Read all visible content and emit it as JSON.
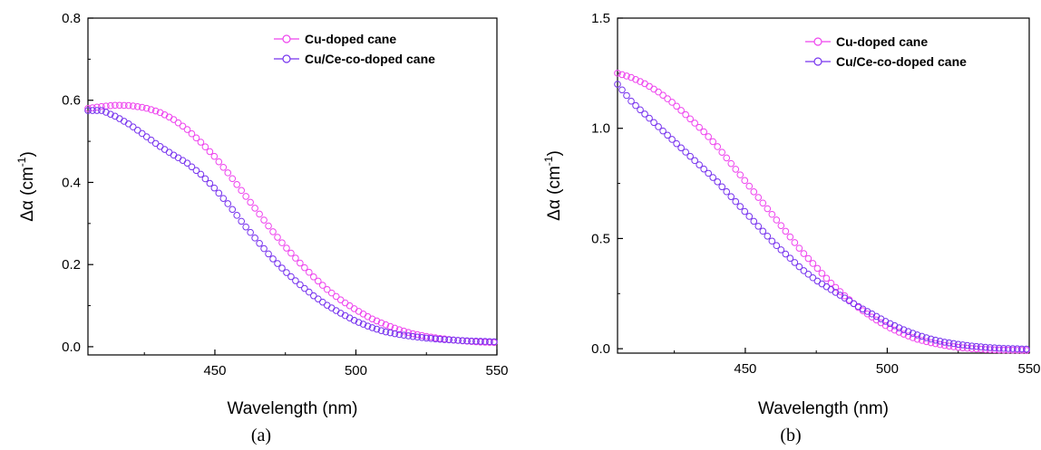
{
  "chart_data": [
    {
      "type": "scatter",
      "panel_label": "(a)",
      "xlabel": "Wavelength (nm)",
      "ylabel_base": "Δα (cm",
      "ylabel_sup": "-1",
      "ylabel_close": ")",
      "xlim": [
        405,
        550
      ],
      "ylim": [
        -0.02,
        0.8
      ],
      "xticks": [
        450,
        500,
        550
      ],
      "xtick_labels": [
        "450",
        "500",
        "550"
      ],
      "yticks": [
        0.0,
        0.2,
        0.4,
        0.6,
        0.8
      ],
      "ytick_labels": [
        "0.0",
        "0.2",
        "0.4",
        "0.6",
        "0.8"
      ],
      "grid": false,
      "legend_position": "top-right",
      "series": [
        {
          "name": "Cu-doped cane",
          "color": "#ee44ee",
          "marker": "open-circle",
          "x": [
            405,
            410,
            415,
            420,
            425,
            430,
            435,
            440,
            445,
            450,
            455,
            460,
            465,
            470,
            475,
            480,
            485,
            490,
            495,
            500,
            505,
            510,
            515,
            520,
            525,
            530,
            535,
            540,
            545,
            550
          ],
          "y": [
            0.58,
            0.585,
            0.588,
            0.587,
            0.582,
            0.572,
            0.555,
            0.53,
            0.498,
            0.462,
            0.42,
            0.375,
            0.33,
            0.285,
            0.243,
            0.205,
            0.17,
            0.138,
            0.112,
            0.09,
            0.07,
            0.055,
            0.042,
            0.032,
            0.025,
            0.02,
            0.016,
            0.013,
            0.011,
            0.01
          ]
        },
        {
          "name": "Cu/Ce-co-doped cane",
          "color": "#7733ee",
          "marker": "open-circle",
          "x": [
            405,
            410,
            415,
            420,
            425,
            430,
            435,
            440,
            445,
            450,
            455,
            460,
            465,
            470,
            475,
            480,
            485,
            490,
            495,
            500,
            505,
            510,
            515,
            520,
            525,
            530,
            535,
            540,
            545,
            550
          ],
          "y": [
            0.575,
            0.575,
            0.56,
            0.54,
            0.515,
            0.49,
            0.468,
            0.448,
            0.42,
            0.385,
            0.345,
            0.3,
            0.258,
            0.218,
            0.183,
            0.152,
            0.124,
            0.1,
            0.08,
            0.062,
            0.048,
            0.037,
            0.03,
            0.025,
            0.021,
            0.018,
            0.016,
            0.014,
            0.013,
            0.012
          ]
        }
      ]
    },
    {
      "type": "scatter",
      "panel_label": "(b)",
      "xlabel": "Wavelength (nm)",
      "ylabel_base": "Δα (cm",
      "ylabel_sup": "-1",
      "ylabel_close": ")",
      "xlim": [
        405,
        550
      ],
      "ylim": [
        -0.02,
        1.5
      ],
      "xticks": [
        450,
        500,
        550
      ],
      "xtick_labels": [
        "450",
        "500",
        "550"
      ],
      "yticks": [
        0.0,
        0.5,
        1.0,
        1.5
      ],
      "ytick_labels": [
        "0.0",
        "0.5",
        "1.0",
        "1.5"
      ],
      "grid": false,
      "legend_position": "top-right",
      "series": [
        {
          "name": "Cu-doped cane",
          "color": "#ee44ee",
          "marker": "open-circle",
          "x": [
            405,
            410,
            415,
            420,
            425,
            430,
            435,
            440,
            445,
            450,
            455,
            460,
            465,
            470,
            475,
            480,
            485,
            490,
            495,
            500,
            505,
            510,
            515,
            520,
            525,
            530,
            535,
            540,
            545,
            550
          ],
          "y": [
            1.25,
            1.23,
            1.2,
            1.16,
            1.11,
            1.05,
            0.99,
            0.92,
            0.84,
            0.76,
            0.68,
            0.6,
            0.52,
            0.44,
            0.37,
            0.3,
            0.24,
            0.185,
            0.14,
            0.1,
            0.07,
            0.045,
            0.028,
            0.015,
            0.006,
            0.0,
            -0.004,
            -0.006,
            -0.007,
            -0.008
          ]
        },
        {
          "name": "Cu/Ce-co-doped cane",
          "color": "#7733ee",
          "marker": "open-circle",
          "x": [
            405,
            410,
            415,
            420,
            425,
            430,
            435,
            440,
            445,
            450,
            455,
            460,
            465,
            470,
            475,
            480,
            485,
            490,
            495,
            500,
            505,
            510,
            515,
            520,
            525,
            530,
            535,
            540,
            545,
            550
          ],
          "y": [
            1.2,
            1.12,
            1.06,
            1.0,
            0.94,
            0.88,
            0.82,
            0.76,
            0.69,
            0.62,
            0.55,
            0.48,
            0.42,
            0.36,
            0.31,
            0.27,
            0.23,
            0.19,
            0.155,
            0.12,
            0.09,
            0.065,
            0.045,
            0.03,
            0.02,
            0.012,
            0.006,
            0.002,
            0.0,
            -0.002
          ]
        }
      ]
    }
  ]
}
